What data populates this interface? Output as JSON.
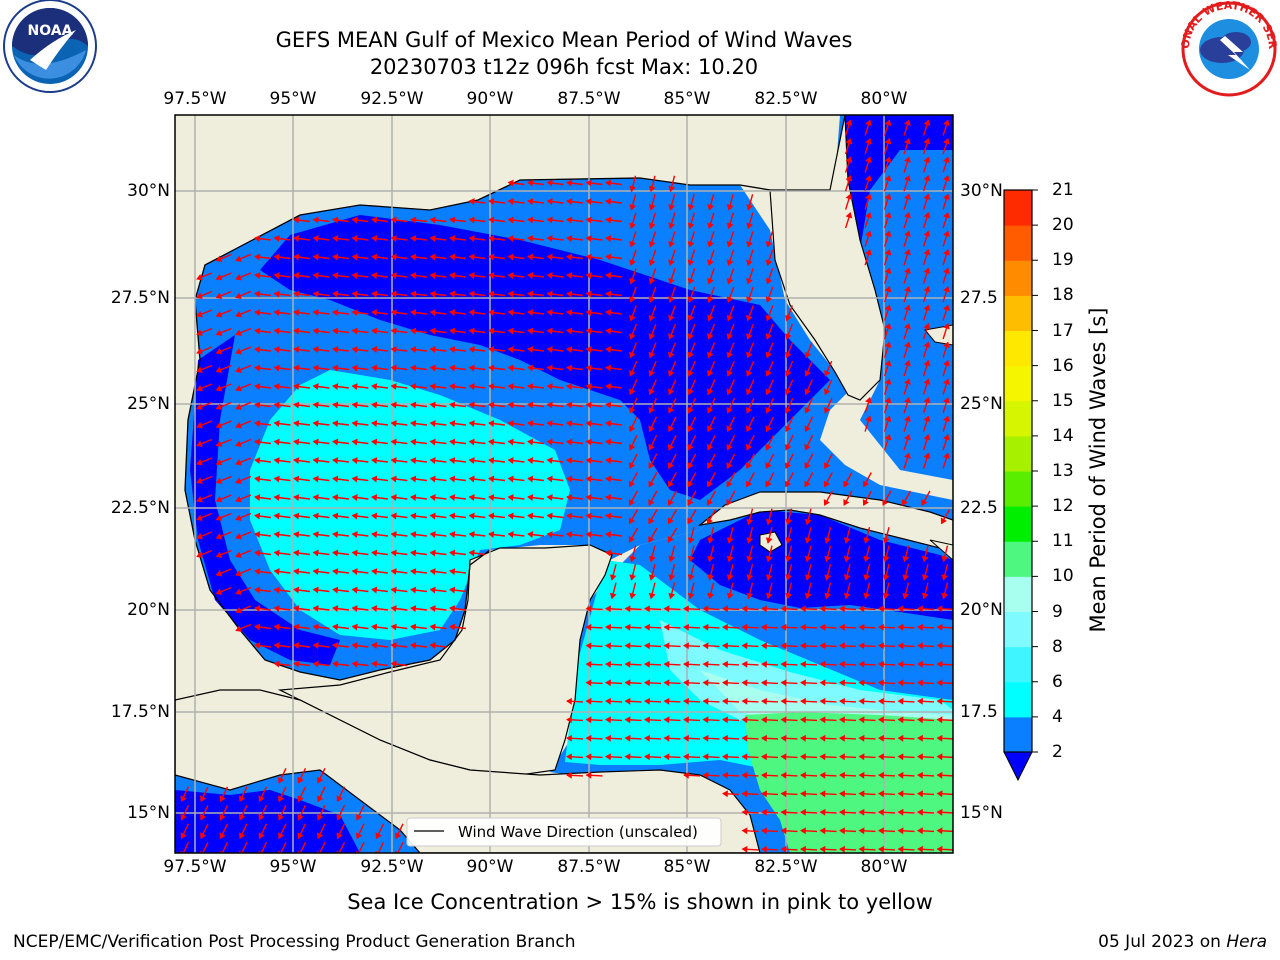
{
  "title": {
    "line1": "GEFS MEAN Gulf of Mexico Mean Period of Wind Waves",
    "line2": "20230703 t12z 096h fcst   Max: 10.20"
  },
  "lon_labels": [
    "97.5°W",
    "95°W",
    "92.5°W",
    "90°W",
    "87.5°W",
    "85°W",
    "82.5°W",
    "80°W"
  ],
  "lat_labels_left": [
    "30°N",
    "27.5°N",
    "25°N",
    "22.5°N",
    "20°N",
    "17.5°N",
    "15°N"
  ],
  "lat_labels_right": [
    "30°N",
    "27.5",
    "25°N",
    "22.5",
    "20°N",
    "17.5",
    "15°N"
  ],
  "legend": {
    "label": "Wind Wave Direction (unscaled)"
  },
  "colorbar": {
    "label": "Mean Period of Wind Waves [s]",
    "ticks": [
      "2",
      "4",
      "6",
      "8",
      "9",
      "10",
      "11",
      "12",
      "13",
      "14",
      "15",
      "16",
      "17",
      "18",
      "19",
      "20",
      "21"
    ],
    "colors": [
      "#0a7fff",
      "#00ffff",
      "#3ff5ff",
      "#7ffaff",
      "#a8fff0",
      "#4ef77f",
      "#00ef00",
      "#59ee00",
      "#a6f000",
      "#d6f500",
      "#f5f500",
      "#ffe800",
      "#ffbd00",
      "#ff8c00",
      "#ff5c00",
      "#ff2b00"
    ],
    "extend_color": "#0000ff"
  },
  "subtitle": "Sea Ice Concentration > 15% is shown in pink to yellow",
  "footer": {
    "left": "NCEP/EMC/Verification Post Processing Product Generation Branch",
    "right_date": "05 Jul 2023 on ",
    "right_machine": "Hera"
  },
  "logos": {
    "left": "NOAA",
    "right": "NATIONAL WEATHER SERVICE"
  },
  "colors": {
    "land": "#efeedc",
    "coast": "#000000",
    "grid": "#b0b0b0",
    "arrows": "#ff0000"
  }
}
